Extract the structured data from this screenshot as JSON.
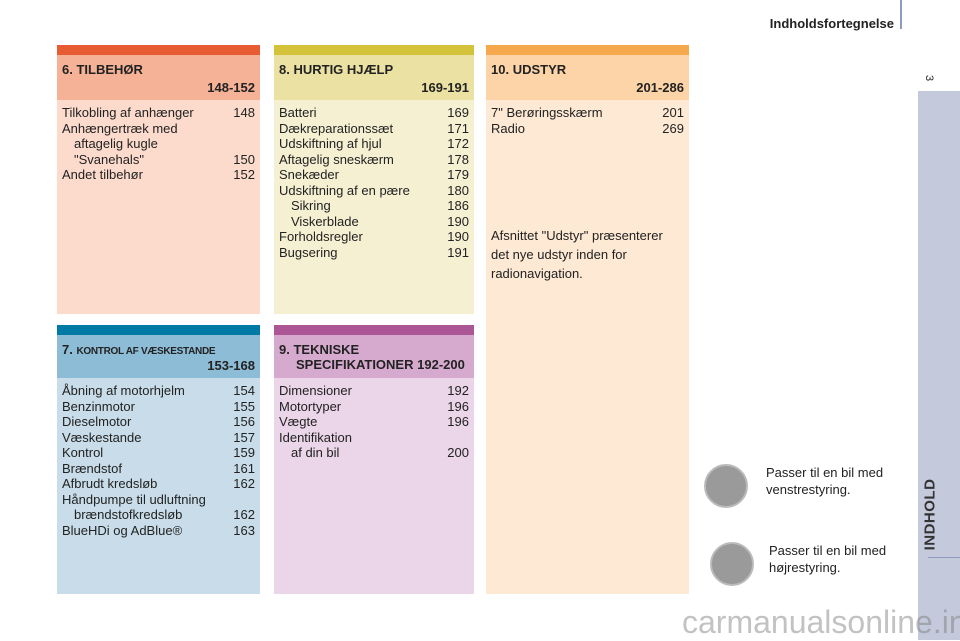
{
  "header": {
    "title": "Indholdsfortegnelse",
    "page_number": "3"
  },
  "sidebar": {
    "label": "INDHOLD"
  },
  "sections": [
    {
      "num": "6.",
      "title": "TILBEHØR",
      "range": "148-152",
      "colors": {
        "bar": "#e85c34",
        "header": "#f5b296",
        "body": "#fcdbcd"
      },
      "items": [
        {
          "label": "Tilkobling af anhænger",
          "page": "148"
        },
        {
          "label": "Anhængertræk med",
          "page": ""
        },
        {
          "label": "aftagelig kugle",
          "page": "",
          "indent": true
        },
        {
          "label": "\"Svanehals\"",
          "page": "150",
          "indent": true
        },
        {
          "label": "Andet tilbehør",
          "page": "152"
        }
      ]
    },
    {
      "num": "8.",
      "title": "HURTIG HJÆLP",
      "range": "169-191",
      "colors": {
        "bar": "#d5c23b",
        "header": "#ebe1a2",
        "body": "#f6f0d3"
      },
      "items": [
        {
          "label": "Batteri",
          "page": "169"
        },
        {
          "label": "Dækreparationssæt",
          "page": "171"
        },
        {
          "label": "Udskiftning af hjul",
          "page": "172"
        },
        {
          "label": "Aftagelig sneskærm",
          "page": "178"
        },
        {
          "label": "Snekæder",
          "page": "179"
        },
        {
          "label": "Udskiftning af en pære",
          "page": "180"
        },
        {
          "label": "Sikring",
          "page": "186",
          "indent": true
        },
        {
          "label": "Viskerblade",
          "page": "190",
          "indent": true
        },
        {
          "label": "Forholdsregler",
          "page": "190"
        },
        {
          "label": "Bugsering",
          "page": "191"
        }
      ]
    },
    {
      "num": "10.",
      "title": "UDSTYR",
      "range": "201-286",
      "colors": {
        "bar": "#f5a84c",
        "header": "#fcd4a8",
        "body": "#fde9d4"
      },
      "items": [
        {
          "label": "7\" Berøringsskærm",
          "page": "201"
        },
        {
          "label": "Radio",
          "page": "269"
        }
      ],
      "note": "Afsnittet \"Udstyr\" præsenterer det nye udstyr inden for radionavigation."
    },
    {
      "num": "7.",
      "title": "KONTROL AF VÆSKESTANDE",
      "range": "153-168",
      "colors": {
        "bar": "#007aa5",
        "header": "#8dbcd6",
        "body": "#c8dde9"
      },
      "items": [
        {
          "label": "Åbning af motorhjelm",
          "page": "154"
        },
        {
          "label": "Benzinmotor",
          "page": "155"
        },
        {
          "label": "Dieselmotor",
          "page": "156"
        },
        {
          "label": "Væskestande",
          "page": "157"
        },
        {
          "label": "Kontrol",
          "page": "159"
        },
        {
          "label": "Brændstof",
          "page": "161"
        },
        {
          "label": "Afbrudt kredsløb",
          "page": "162"
        },
        {
          "label": "Håndpumpe til udluftning",
          "page": ""
        },
        {
          "label": "brændstofkredsløb",
          "page": "162",
          "indent": true
        },
        {
          "label": "BlueHDi og AdBlue®",
          "page": "163"
        }
      ]
    },
    {
      "num": "9.",
      "title": "TEKNISKE",
      "title2": "SPECIFIKATIONER",
      "range": "192-200",
      "colors": {
        "bar": "#ad5696",
        "header": "#d6aace",
        "body": "#ebd6e9"
      },
      "items": [
        {
          "label": "Dimensioner",
          "page": "192"
        },
        {
          "label": "Motortyper",
          "page": "196"
        },
        {
          "label": "Vægte",
          "page": "196"
        },
        {
          "label": "Identifikation",
          "page": ""
        },
        {
          "label": "af din bil",
          "page": "200",
          "indent": true
        }
      ]
    }
  ],
  "legend": [
    {
      "icon": "left-hand-drive-icon",
      "text": "Passer til en bil med venstrestyring."
    },
    {
      "icon": "right-hand-drive-icon",
      "text": "Passer til en bil med højrestyring."
    }
  ],
  "watermark": "carmanualsonline.info"
}
